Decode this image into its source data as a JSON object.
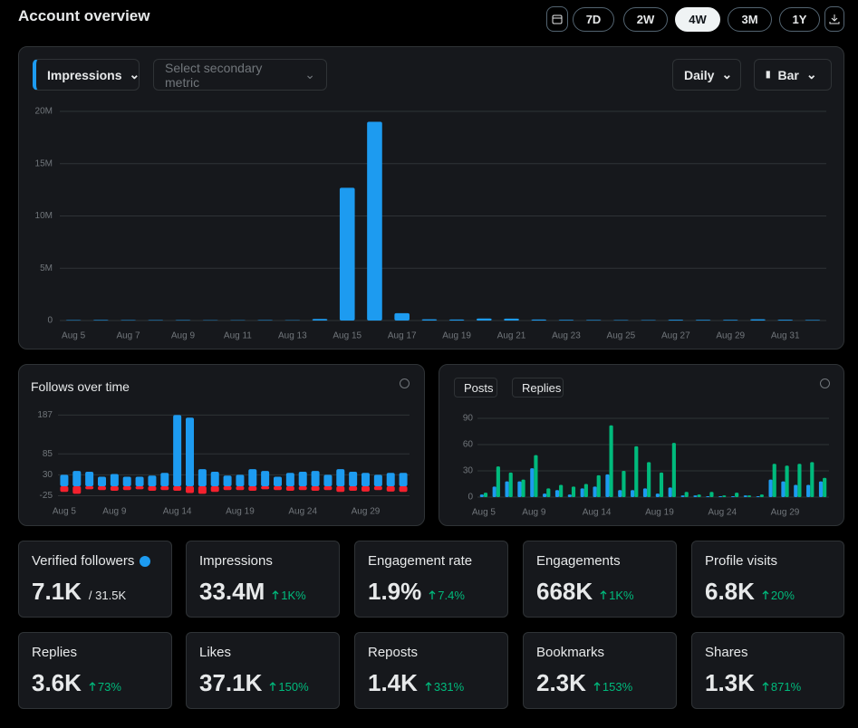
{
  "header": {
    "title": "Account overview",
    "ranges": [
      {
        "label": "7D"
      },
      {
        "label": "2W"
      },
      {
        "label": "4W",
        "selected": true
      },
      {
        "label": "3M"
      },
      {
        "label": "1Y"
      }
    ]
  },
  "controls": {
    "metric": "Impressions",
    "secondary": "Select secondary metric",
    "interval": "Daily",
    "chart_style": "Bar"
  },
  "chart_data": [
    {
      "type": "bar",
      "barmode": "group",
      "grid": true,
      "categories": [
        "Aug 5",
        null,
        "Aug 7",
        null,
        "Aug 9",
        null,
        "Aug 11",
        null,
        "Aug 13",
        null,
        "Aug 15",
        null,
        "Aug 17",
        null,
        "Aug 19",
        null,
        "Aug 21",
        null,
        "Aug 23",
        null,
        "Aug 25",
        null,
        "Aug 27",
        null,
        "Aug 29",
        null,
        "Aug 31",
        null
      ],
      "series": [
        {
          "color": "#1d9bf0",
          "values": [
            40000,
            50000,
            40000,
            40000,
            40000,
            30000,
            30000,
            40000,
            30000,
            150000,
            12700000,
            19000000,
            700000,
            120000,
            100000,
            200000,
            180000,
            100000,
            60000,
            50000,
            40000,
            40000,
            80000,
            60000,
            60000,
            120000,
            80000,
            50000
          ]
        }
      ],
      "ylim": [
        0,
        20000000
      ],
      "yticks": [
        0,
        {
          "value": 5000000,
          "label": "5M"
        },
        {
          "value": 10000000,
          "label": "10M"
        },
        {
          "value": 15000000,
          "label": "15M"
        },
        {
          "value": 20000000,
          "label": "20M"
        }
      ]
    },
    {
      "type": "bar",
      "barmode": "overlay",
      "grid": true,
      "title": "Follows over time",
      "categories": [
        "Aug 5",
        null,
        null,
        null,
        "Aug 9",
        null,
        null,
        null,
        null,
        "Aug 14",
        null,
        null,
        null,
        null,
        "Aug 19",
        null,
        null,
        null,
        null,
        "Aug 24",
        null,
        null,
        null,
        null,
        "Aug 29",
        null,
        null,
        null
      ],
      "series": [
        {
          "color": "#1d9bf0",
          "values": [
            30,
            40,
            38,
            25,
            32,
            25,
            25,
            28,
            35,
            187,
            180,
            45,
            38,
            28,
            30,
            45,
            40,
            25,
            35,
            38,
            40,
            30,
            45,
            38,
            35,
            30,
            35,
            35
          ]
        },
        {
          "color": "#f4212e",
          "values": [
            -15,
            -20,
            -8,
            -10,
            -12,
            -10,
            -8,
            -12,
            -10,
            -12,
            -18,
            -20,
            -15,
            -10,
            -10,
            -12,
            -8,
            -10,
            -12,
            -10,
            -12,
            -10,
            -15,
            -12,
            -14,
            -10,
            -14,
            -15
          ]
        }
      ],
      "ylim": [
        -30,
        195
      ],
      "yticks": [
        -25,
        30,
        85,
        187
      ]
    },
    {
      "type": "bar",
      "barmode": "group",
      "grid": true,
      "categories": [
        "Aug 5",
        null,
        null,
        null,
        "Aug 9",
        null,
        null,
        null,
        null,
        "Aug 14",
        null,
        null,
        null,
        null,
        "Aug 19",
        null,
        null,
        null,
        null,
        "Aug 24",
        null,
        null,
        null,
        null,
        "Aug 29",
        null,
        null,
        null
      ],
      "series": [
        {
          "name": "Posts",
          "color": "#1d9bf0",
          "values": [
            3,
            12,
            18,
            18,
            33,
            4,
            8,
            3,
            10,
            12,
            26,
            8,
            8,
            10,
            4,
            11,
            2,
            2,
            1,
            1,
            1,
            2,
            1,
            20,
            18,
            14,
            14,
            18
          ]
        },
        {
          "name": "Replies",
          "color": "#00ba7c",
          "values": [
            5,
            35,
            28,
            20,
            48,
            10,
            14,
            12,
            15,
            25,
            82,
            30,
            58,
            40,
            28,
            62,
            6,
            3,
            6,
            2,
            5,
            2,
            3,
            38,
            36,
            38,
            40,
            22
          ]
        }
      ],
      "ylim": [
        0,
        90
      ],
      "yticks": [
        0,
        30,
        60,
        90
      ]
    }
  ],
  "cards": [
    {
      "label": "Verified followers",
      "value": "7.1K",
      "total": "/ 31.5K"
    },
    {
      "label": "Impressions",
      "value": "33.4M",
      "change": "1K%"
    },
    {
      "label": "Engagement rate",
      "value": "1.9%",
      "change": "7.4%"
    },
    {
      "label": "Engagements",
      "value": "668K",
      "change": "1K%"
    },
    {
      "label": "Profile visits",
      "value": "6.8K",
      "change": "20%"
    },
    {
      "label": "Replies",
      "value": "3.6K",
      "change": "73%"
    },
    {
      "label": "Likes",
      "value": "37.1K",
      "change": "150%"
    },
    {
      "label": "Reposts",
      "value": "1.4K",
      "change": "331%"
    },
    {
      "label": "Bookmarks",
      "value": "2.3K",
      "change": "153%"
    },
    {
      "label": "Shares",
      "value": "1.3K",
      "change": "871%"
    }
  ]
}
